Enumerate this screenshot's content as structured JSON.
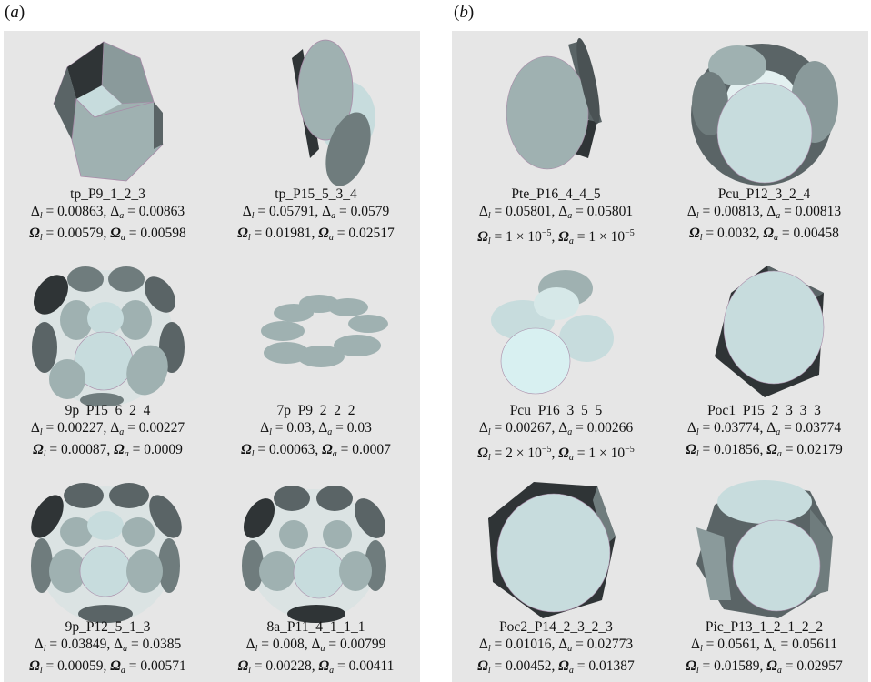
{
  "labels": {
    "a": "a",
    "b": "b"
  },
  "colors": {
    "panel_bg": "#e6e6e6",
    "face_light": "#c7dcdd",
    "face_mid": "#9fb1b1",
    "face_dark": "#5a6466",
    "face_black": "#2f3436"
  },
  "panel_a": [
    {
      "name": "tp_P9_1_2_3",
      "dl": "0.00863",
      "da": "0.00863",
      "ol": "0.00579",
      "oa": "0.00598"
    },
    {
      "name": "tp_P15_5_3_4",
      "dl": "0.05791",
      "da": "0.0579",
      "ol": "0.01981",
      "oa": "0.02517"
    },
    {
      "name": "9p_P15_6_2_4",
      "dl": "0.00227",
      "da": "0.00227",
      "ol": "0.00087",
      "oa": "0.0009"
    },
    {
      "name": "7p_P9_2_2_2",
      "dl": "0.03",
      "da": "0.03",
      "ol": "0.00063",
      "oa": "0.0007"
    },
    {
      "name": "9p_P12_5_1_3",
      "dl": "0.03849",
      "da": "0.0385",
      "ol": "0.00059",
      "oa": "0.00571"
    },
    {
      "name": "8a_P11_4_1_1_1",
      "dl": "0.008",
      "da": "0.00799",
      "ol": "0.00228",
      "oa": "0.00411"
    }
  ],
  "panel_b": [
    {
      "name": "Pte_P16_4_4_5",
      "dl": "0.05801",
      "da": "0.05801",
      "ol_m": "1",
      "ol_e": "−5",
      "oa_m": "1",
      "oa_e": "−5"
    },
    {
      "name": "Pcu_P12_3_2_4",
      "dl": "0.00813",
      "da": "0.00813",
      "ol": "0.0032",
      "oa": "0.00458"
    },
    {
      "name": "Pcu_P16_3_5_5",
      "dl": "0.00267",
      "da": "0.00266",
      "ol_m": "2",
      "ol_e": "−5",
      "oa_m": "1",
      "oa_e": "−5"
    },
    {
      "name": "Poc1_P15_2_3_3_3",
      "dl": "0.03774",
      "da": "0.03774",
      "ol": "0.01856",
      "oa": "0.02179"
    },
    {
      "name": "Poc2_P14_2_3_2_3",
      "dl": "0.01016",
      "da": "0.02773",
      "ol": "0.00452",
      "oa": "0.01387"
    },
    {
      "name": "Pic_P13_1_2_1_2_2",
      "dl": "0.0561",
      "da": "0.05611",
      "ol": "0.01589",
      "oa": "0.02957"
    }
  ]
}
